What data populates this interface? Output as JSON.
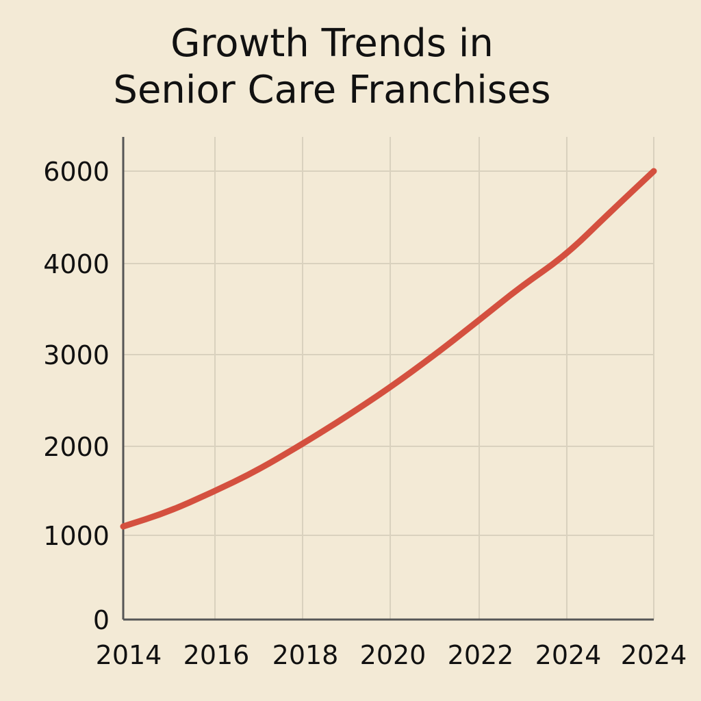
{
  "chart_data": {
    "type": "line",
    "title_lines": [
      "Growth Trends in",
      "Senior Care Franchises"
    ],
    "xlabel": "",
    "ylabel": "",
    "x_tick_labels": [
      "2014",
      "2016",
      "2018",
      "2020",
      "2022",
      "2024",
      "2024"
    ],
    "y_tick_labels": [
      "0",
      "1000",
      "2000",
      "3000",
      "4000",
      "6000"
    ],
    "grid": true,
    "series": [
      {
        "color": "#d4503f",
        "points": [
          {
            "x": 0,
            "y": 1100
          },
          {
            "x": 1,
            "y": 1260
          },
          {
            "x": 2,
            "y": 1480
          },
          {
            "x": 3,
            "y": 1720
          },
          {
            "x": 4,
            "y": 2010
          },
          {
            "x": 5,
            "y": 2310
          },
          {
            "x": 6,
            "y": 2630
          },
          {
            "x": 7,
            "y": 2980
          },
          {
            "x": 8,
            "y": 3360
          },
          {
            "x": 9,
            "y": 3750
          },
          {
            "x": 10,
            "y": 4170
          },
          {
            "x": 11,
            "y": 5100
          },
          {
            "x": 12,
            "y": 6000
          }
        ]
      }
    ]
  },
  "colors": {
    "background": "#f3ead6",
    "grid": "#d9d1be",
    "axis": "#555555",
    "line": "#d4503f",
    "text": "#111111"
  }
}
